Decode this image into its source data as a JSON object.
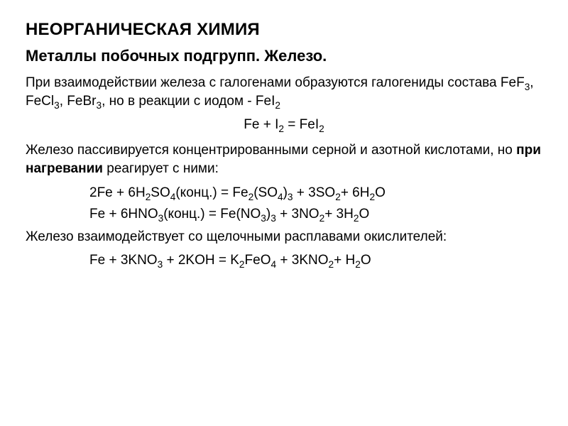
{
  "title": "НЕОРГАНИЧЕСКАЯ ХИМИЯ",
  "subtitle": "Металлы побочных подгрупп. Железо.",
  "p1_a": "При взаимодействии железа с галогенами образуются галогениды состава FeF",
  "p1_b": ", FeCl",
  "p1_c": ",  FeBr",
  "p1_d": ", но в реакции с иодом - FeI",
  "eq1_a": "Fe + I",
  "eq1_b": " = FeI",
  "p2_a": "Железо пассивируется концентрированными серной и азотной кислотами, но ",
  "p2_bold": "при нагревании",
  "p2_b": " реагирует с ними:",
  "eq2_a": "2Fe + 6H",
  "eq2_b": "SO",
  "eq2_c": "(конц.) = Fe",
  "eq2_d": "(SO",
  "eq2_e": ")",
  "eq2_f": " + 3SO",
  "eq2_g": "+ 6H",
  "eq2_h": "O",
  "eq3_a": "Fe + 6HNO",
  "eq3_b": "(конц.)  = Fe(NO",
  "eq3_c": ")",
  "eq3_d": " + 3NO",
  "eq3_e": "+ 3H",
  "eq3_f": "O",
  "p3": "Железо взаимодействует со щелочными расплавами окислителей:",
  "eq4_a": "Fe + 3KNO",
  "eq4_b": " + 2KOH = K",
  "eq4_c": "FeO",
  "eq4_d": " + 3KNO",
  "eq4_e": "+ H",
  "eq4_f": "O",
  "sub2": "2",
  "sub3": "3",
  "sub4": "4",
  "colors": {
    "background": "#ffffff",
    "text": "#000000"
  },
  "fontsizes": {
    "h1": 24,
    "h2": 22,
    "body": 19
  }
}
